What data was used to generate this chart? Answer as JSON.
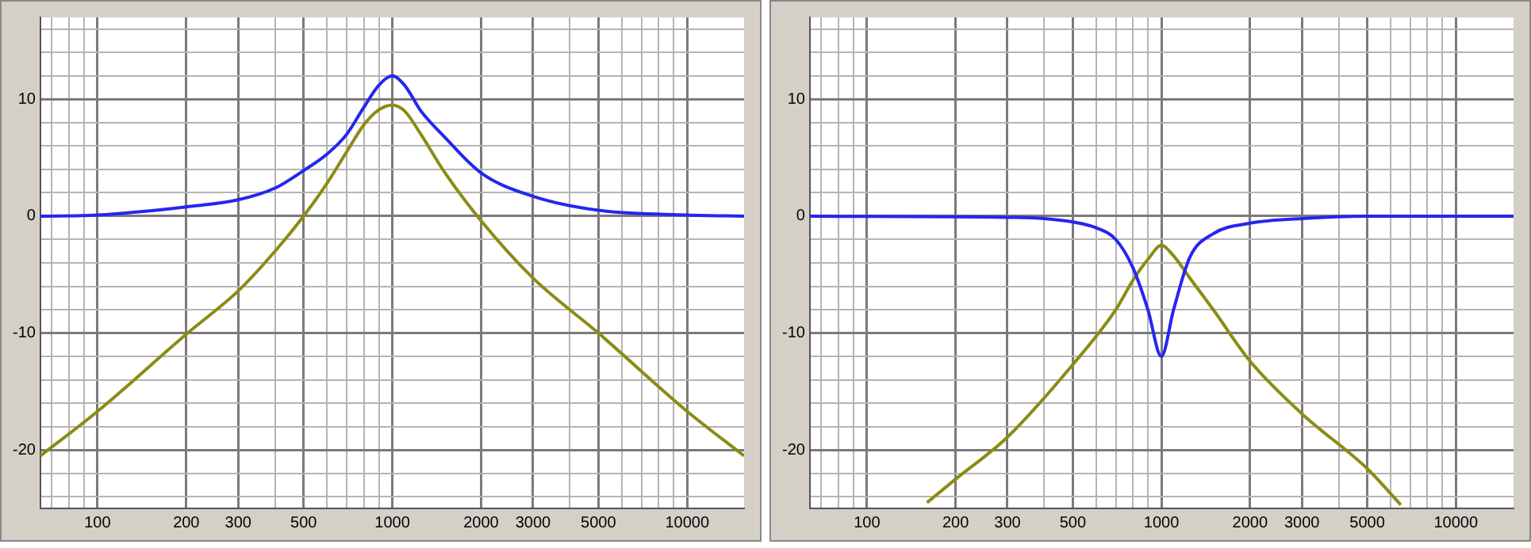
{
  "chart_data": [
    {
      "type": "line",
      "log": "x",
      "grid": true,
      "xlim": [
        64,
        15600
      ],
      "ylim": [
        -25,
        17
      ],
      "xticks": [
        {
          "value": 70,
          "label": null
        },
        {
          "value": 80,
          "label": null
        },
        {
          "value": 90,
          "label": null
        },
        100,
        200,
        300,
        {
          "value": 400,
          "label": null
        },
        500,
        {
          "value": 600,
          "label": null
        },
        {
          "value": 700,
          "label": null
        },
        {
          "value": 800,
          "label": null
        },
        {
          "value": 900,
          "label": null
        },
        1000,
        2000,
        3000,
        {
          "value": 4000,
          "label": null
        },
        5000,
        {
          "value": 6000,
          "label": null
        },
        {
          "value": 7000,
          "label": null
        },
        {
          "value": 8000,
          "label": null
        },
        {
          "value": 9000,
          "label": null
        },
        10000
      ],
      "yticks": [
        {
          "value": -24,
          "label": null
        },
        {
          "value": -22,
          "label": null
        },
        -20,
        {
          "value": -18,
          "label": null
        },
        {
          "value": -16,
          "label": null
        },
        {
          "value": -14,
          "label": null
        },
        {
          "value": -12,
          "label": null
        },
        -10,
        {
          "value": -8,
          "label": null
        },
        {
          "value": -6,
          "label": null
        },
        {
          "value": -4,
          "label": null
        },
        {
          "value": -2,
          "label": null
        },
        0,
        {
          "value": 2,
          "label": null
        },
        {
          "value": 4,
          "label": null
        },
        {
          "value": 6,
          "label": null
        },
        {
          "value": 8,
          "label": null
        },
        10,
        {
          "value": 12,
          "label": null
        },
        {
          "value": 14,
          "label": null
        },
        {
          "value": 16,
          "label": null
        }
      ],
      "series": [
        {
          "color": "#2626f0",
          "x": [
            64,
            100,
            200,
            300,
            400,
            500,
            600,
            700,
            800,
            900,
            1000,
            1100,
            1250,
            1500,
            2000,
            3000,
            5000,
            10000,
            15600
          ],
          "values": [
            0,
            0.1,
            0.8,
            1.4,
            2.4,
            3.9,
            5.3,
            7,
            9.3,
            11.2,
            12,
            11.2,
            9,
            6.8,
            3.7,
            1.7,
            0.5,
            0.1,
            0
          ]
        },
        {
          "color": "#8c8c14",
          "x": [
            64,
            100,
            200,
            300,
            400,
            500,
            600,
            700,
            800,
            900,
            1000,
            1100,
            1250,
            1500,
            2000,
            3000,
            5000,
            10000,
            15600
          ],
          "values": [
            -20.5,
            -16.7,
            -10.1,
            -6.4,
            -3,
            0,
            2.8,
            5.5,
            7.8,
            9.1,
            9.5,
            9,
            7,
            3.8,
            -0.4,
            -5.3,
            -10,
            -16.7,
            -20.5
          ]
        }
      ]
    },
    {
      "type": "line",
      "log": "x",
      "grid": true,
      "xlim": [
        64,
        15700
      ],
      "ylim": [
        -25,
        17
      ],
      "xticks": [
        {
          "value": 70,
          "label": null
        },
        {
          "value": 80,
          "label": null
        },
        {
          "value": 90,
          "label": null
        },
        100,
        200,
        300,
        {
          "value": 400,
          "label": null
        },
        500,
        {
          "value": 600,
          "label": null
        },
        {
          "value": 700,
          "label": null
        },
        {
          "value": 800,
          "label": null
        },
        {
          "value": 900,
          "label": null
        },
        1000,
        2000,
        3000,
        {
          "value": 4000,
          "label": null
        },
        5000,
        {
          "value": 6000,
          "label": null
        },
        {
          "value": 7000,
          "label": null
        },
        {
          "value": 8000,
          "label": null
        },
        {
          "value": 9000,
          "label": null
        },
        10000
      ],
      "yticks": [
        {
          "value": -24,
          "label": null
        },
        {
          "value": -22,
          "label": null
        },
        -20,
        {
          "value": -18,
          "label": null
        },
        {
          "value": -16,
          "label": null
        },
        {
          "value": -14,
          "label": null
        },
        {
          "value": -12,
          "label": null
        },
        -10,
        {
          "value": -8,
          "label": null
        },
        {
          "value": -6,
          "label": null
        },
        {
          "value": -4,
          "label": null
        },
        {
          "value": -2,
          "label": null
        },
        0,
        {
          "value": 2,
          "label": null
        },
        {
          "value": 4,
          "label": null
        },
        {
          "value": 6,
          "label": null
        },
        {
          "value": 8,
          "label": null
        },
        10,
        {
          "value": 12,
          "label": null
        },
        {
          "value": 14,
          "label": null
        },
        {
          "value": 16,
          "label": null
        }
      ],
      "series": [
        {
          "color": "#2626f0",
          "x": [
            64,
            300,
            400,
            500,
            600,
            700,
            800,
            900,
            1000,
            1100,
            1250,
            1500,
            2000,
            3000,
            5000,
            15700
          ],
          "values": [
            0,
            -0.1,
            -0.2,
            -0.5,
            -1,
            -2,
            -4.4,
            -8,
            -12,
            -8,
            -3.5,
            -1.5,
            -0.6,
            -0.2,
            0,
            0
          ]
        },
        {
          "color": "#8c8c14",
          "x": [
            160,
            200,
            300,
            500,
            700,
            800,
            900,
            1000,
            1100,
            1250,
            1500,
            2000,
            3000,
            5000,
            6500
          ],
          "values": [
            -24.5,
            -22.5,
            -18.9,
            -12.7,
            -8,
            -5.5,
            -3.7,
            -2.5,
            -3.4,
            -5.3,
            -8,
            -12.4,
            -16.9,
            -21.6,
            -24.7
          ]
        }
      ]
    }
  ]
}
